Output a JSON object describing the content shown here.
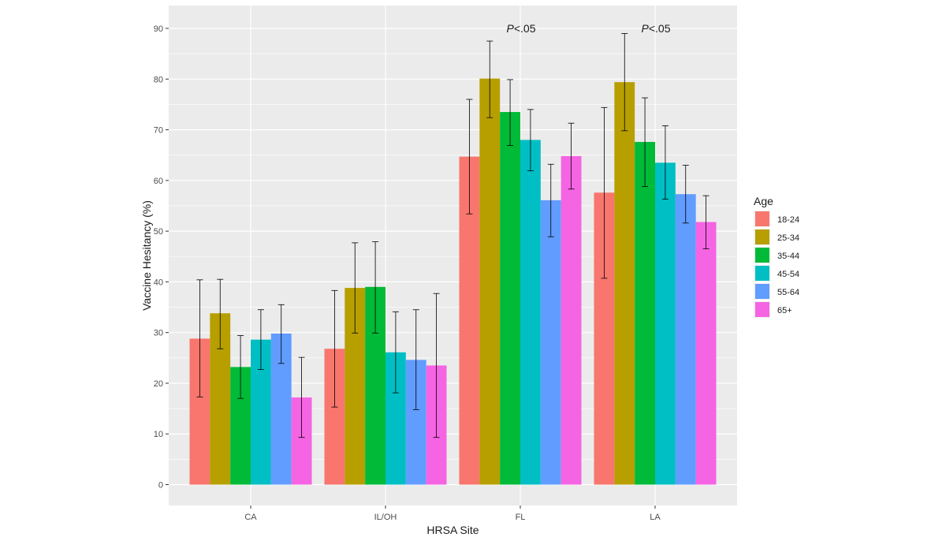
{
  "chart_data": {
    "type": "bar",
    "xlabel": "HRSA Site",
    "ylabel": "Vaccine Hesitancy (%)",
    "ylim": [
      0,
      93
    ],
    "yticks": [
      0,
      10,
      20,
      30,
      40,
      50,
      60,
      70,
      80,
      90
    ],
    "grid": true,
    "legend_title": "Age",
    "legend_position": "right",
    "categories": [
      "CA",
      "IL/OH",
      "FL",
      "LA"
    ],
    "series": [
      {
        "name": "18-24",
        "color": "#F8766D",
        "values": [
          28.8,
          26.8,
          64.7,
          57.6
        ],
        "ci_low": [
          17.3,
          15.3,
          53.4,
          40.7
        ],
        "ci_high": [
          40.4,
          38.3,
          76.0,
          74.4
        ]
      },
      {
        "name": "25-34",
        "color": "#B79F00",
        "values": [
          33.8,
          38.8,
          80.1,
          79.4
        ],
        "ci_low": [
          26.8,
          29.9,
          72.4,
          69.8
        ],
        "ci_high": [
          40.5,
          47.7,
          87.5,
          89.0
        ]
      },
      {
        "name": "35-44",
        "color": "#00BA38",
        "values": [
          23.2,
          39.0,
          73.5,
          67.6
        ],
        "ci_low": [
          17.0,
          29.9,
          66.9,
          58.8
        ],
        "ci_high": [
          29.4,
          47.9,
          79.9,
          76.3
        ]
      },
      {
        "name": "45-54",
        "color": "#00BFC4",
        "values": [
          28.6,
          26.1,
          68.0,
          63.5
        ],
        "ci_low": [
          22.7,
          18.1,
          61.9,
          56.3
        ],
        "ci_high": [
          34.5,
          34.1,
          74.0,
          70.8
        ]
      },
      {
        "name": "55-64",
        "color": "#619CFF",
        "values": [
          29.8,
          24.6,
          56.1,
          57.3
        ],
        "ci_low": [
          23.9,
          14.8,
          48.9,
          51.6
        ],
        "ci_high": [
          35.5,
          34.5,
          63.2,
          63.0
        ]
      },
      {
        "name": "65+",
        "color": "#F564E3",
        "values": [
          17.2,
          23.5,
          64.8,
          51.8
        ],
        "ci_low": [
          9.3,
          9.3,
          58.3,
          46.5
        ],
        "ci_high": [
          25.1,
          37.7,
          71.3,
          57.0
        ]
      }
    ],
    "annotations": [
      {
        "category": "FL",
        "y": 90,
        "italic": "P",
        "text": "<.05"
      },
      {
        "category": "LA",
        "y": 90,
        "italic": "P",
        "text": "<.05"
      }
    ]
  }
}
